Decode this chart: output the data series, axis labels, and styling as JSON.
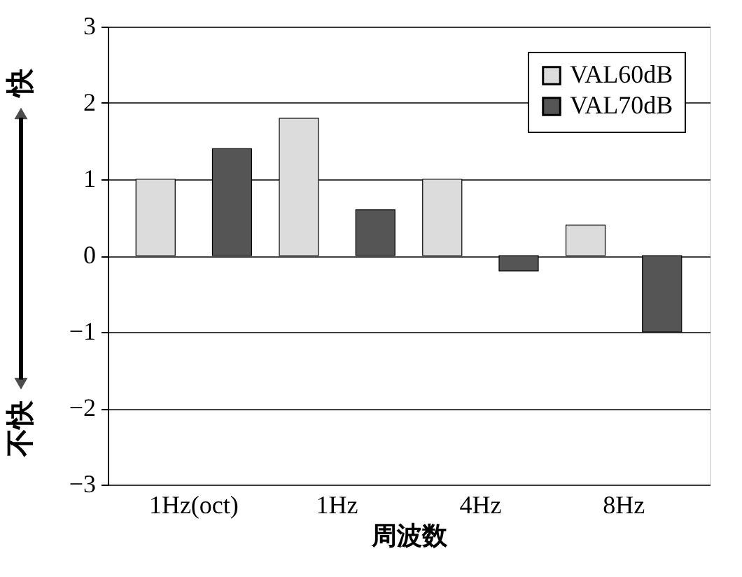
{
  "chart_data": {
    "type": "bar",
    "xlabel": "周波数",
    "categories": [
      "1Hz(oct)",
      "1Hz",
      "4Hz",
      "8Hz"
    ],
    "series": [
      {
        "name": "VAL60dB",
        "color": "#dcdcdc",
        "values": [
          1.0,
          1.8,
          1.0,
          0.4
        ]
      },
      {
        "name": "VAL70dB",
        "color": "#555555",
        "values": [
          1.4,
          0.6,
          -0.2,
          -1.0
        ]
      }
    ],
    "ylim": [
      -3,
      3
    ],
    "yticks": [
      -3,
      -2,
      -1,
      0,
      1,
      2,
      3
    ],
    "grid": "y",
    "legend": "top right",
    "annotations": [
      "快",
      "不快"
    ]
  }
}
